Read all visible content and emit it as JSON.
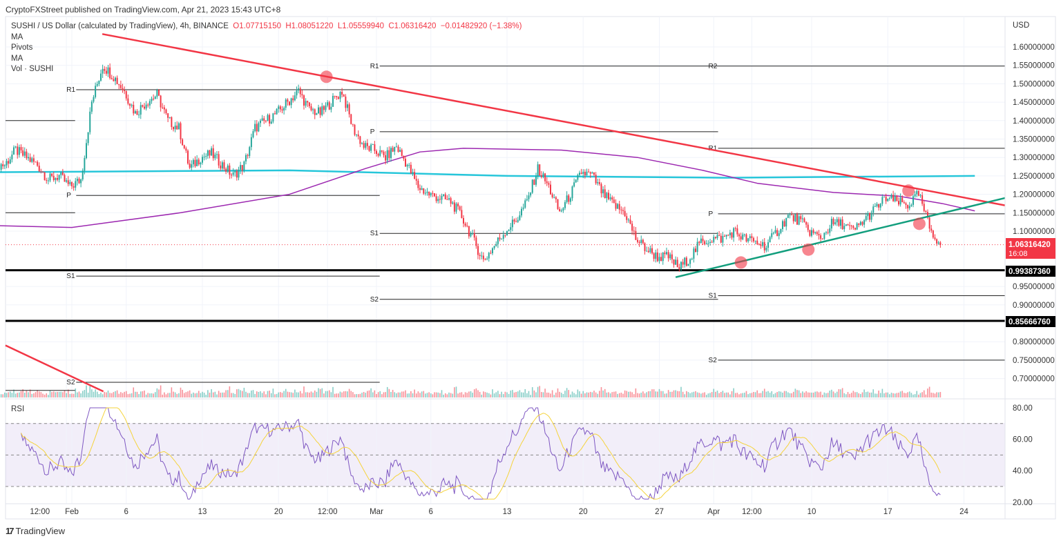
{
  "publish_line": "CryptoFXStreet published on TradingView.com, Apr 21, 2023 15:43 UTC+8",
  "legend": {
    "symbol": "SUSHI / US Dollar (calculated by TradingView), 4h, BINANCE",
    "open": "O1.07715150",
    "high": "H1.08051220",
    "low": "L1.05559940",
    "close": "C1.06316420",
    "change": "−0.01482920 (−1.38%)",
    "indicators": [
      "MA",
      "Pivots",
      "MA",
      "Vol · SUSHI"
    ]
  },
  "currency": "USD",
  "last_price": {
    "value": "1.06316420",
    "countdown": "16:08",
    "color": "#f23645"
  },
  "level_labels": [
    {
      "price": 0.9938736,
      "text": "0.99387360"
    },
    {
      "price": 0.8566676,
      "text": "0.85666760"
    }
  ],
  "rsi_label": "RSI",
  "brand": "TradingView",
  "colors": {
    "up": "#26a69a",
    "down": "#f23645",
    "trend_red": "#f23645",
    "trend_green": "#129e7d",
    "ma_cyan": "#26c6da",
    "ma_purple": "#9c27b0",
    "rsi": "#7e57c2",
    "rsi_ma": "#f5d33b"
  },
  "chart_data": {
    "type": "candlestick",
    "title": "SUSHI / US Dollar, 4h, BINANCE",
    "ylabel": "USD",
    "ylim": [
      0.65,
      1.66
    ],
    "y_ticks": [
      "1.60000000",
      "1.55000000",
      "1.50000000",
      "1.45000000",
      "1.40000000",
      "1.35000000",
      "1.30000000",
      "1.25000000",
      "1.20000000",
      "1.15000000",
      "1.10000000",
      "0.95000000",
      "0.90000000",
      "0.80000000",
      "0.75000000",
      "0.70000000"
    ],
    "x_ticks": [
      {
        "day": -0.5,
        "label": "12:00"
      },
      {
        "day": 0,
        "label": "Feb"
      },
      {
        "day": 5,
        "label": "6"
      },
      {
        "day": 12,
        "label": "13"
      },
      {
        "day": 19,
        "label": "20"
      },
      {
        "day": 23.5,
        "label": "12:00"
      },
      {
        "day": 28,
        "label": "Mar"
      },
      {
        "day": 33,
        "label": "6"
      },
      {
        "day": 40,
        "label": "13"
      },
      {
        "day": 47,
        "label": "20"
      },
      {
        "day": 54,
        "label": "27"
      },
      {
        "day": 59,
        "label": "Apr"
      },
      {
        "day": 62.5,
        "label": "12:00"
      },
      {
        "day": 68,
        "label": "10"
      },
      {
        "day": 75,
        "label": "17"
      },
      {
        "day": 82,
        "label": "24"
      }
    ],
    "start_date": "Jan 25",
    "daily_close": [
      1.28,
      1.32,
      1.3,
      1.28,
      1.24,
      1.25,
      1.22,
      1.24,
      1.45,
      1.55,
      1.52,
      1.48,
      1.42,
      1.45,
      1.47,
      1.4,
      1.38,
      1.27,
      1.3,
      1.31,
      1.28,
      1.25,
      1.28,
      1.38,
      1.4,
      1.42,
      1.45,
      1.48,
      1.43,
      1.42,
      1.45,
      1.48,
      1.38,
      1.33,
      1.32,
      1.3,
      1.33,
      1.28,
      1.22,
      1.2,
      1.19,
      1.18,
      1.14,
      1.08,
      1.02,
      1.06,
      1.1,
      1.13,
      1.18,
      1.27,
      1.22,
      1.15,
      1.2,
      1.26,
      1.25,
      1.2,
      1.17,
      1.15,
      1.08,
      1.05,
      1.03,
      1.03,
      1.0,
      1.03,
      1.07,
      1.08,
      1.08,
      1.1,
      1.08,
      1.07,
      1.06,
      1.1,
      1.14,
      1.13,
      1.1,
      1.08,
      1.12,
      1.12,
      1.1,
      1.13,
      1.16,
      1.19,
      1.18,
      1.17,
      1.2,
      1.11,
      1.063
    ],
    "moving_averages": [
      {
        "name": "MA (cyan)",
        "points": [
          [
            -7,
            1.26
          ],
          [
            20,
            1.265
          ],
          [
            40,
            1.25
          ],
          [
            60,
            1.245
          ],
          [
            83,
            1.25
          ]
        ]
      },
      {
        "name": "MA (purple)",
        "points": [
          [
            -7,
            1.115
          ],
          [
            0,
            1.11
          ],
          [
            10,
            1.15
          ],
          [
            20,
            1.2
          ],
          [
            27,
            1.27
          ],
          [
            32,
            1.315
          ],
          [
            36,
            1.325
          ],
          [
            45,
            1.32
          ],
          [
            52,
            1.3
          ],
          [
            58,
            1.265
          ],
          [
            63,
            1.23
          ],
          [
            70,
            1.205
          ],
          [
            76,
            1.195
          ],
          [
            80,
            1.175
          ],
          [
            83,
            1.155
          ]
        ]
      }
    ],
    "trendlines": [
      {
        "name": "descending resistance",
        "color": "red",
        "from": [
          2.8,
          1.635
        ],
        "to": [
          90.6,
          1.17
        ]
      },
      {
        "name": "ascending support",
        "color": "green",
        "from": [
          55.5,
          0.975
        ],
        "to": [
          90.6,
          1.19
        ]
      },
      {
        "name": "old descending line",
        "color": "red",
        "from": [
          -6.1,
          0.79
        ],
        "to": [
          2.9,
          0.665
        ]
      }
    ],
    "horizontal_levels": [
      0.9938736,
      0.8566676
    ],
    "pivots": [
      {
        "label": "",
        "price": 1.4,
        "from": -6.1,
        "to": 0.3
      },
      {
        "label": "",
        "price": 1.15,
        "from": -6.1,
        "to": 0.3
      },
      {
        "label": "",
        "price": 0.668,
        "from": -6.1,
        "to": 0.3
      },
      {
        "label": "R1",
        "price": 1.484,
        "from": 0.4,
        "to": 28.3
      },
      {
        "label": "P",
        "price": 1.197,
        "from": 0.4,
        "to": 28.3
      },
      {
        "label": "S1",
        "price": 0.978,
        "from": 0.4,
        "to": 28.3
      },
      {
        "label": "S2",
        "price": 0.69,
        "from": 0.4,
        "to": 28.3
      },
      {
        "label": "R1",
        "price": 1.548,
        "from": 28.3,
        "to": 59.4
      },
      {
        "label": "P",
        "price": 1.37,
        "from": 28.3,
        "to": 59.4
      },
      {
        "label": "S1",
        "price": 1.094,
        "from": 28.3,
        "to": 59.4
      },
      {
        "label": "S2",
        "price": 0.915,
        "from": 28.3,
        "to": 59.4
      },
      {
        "label": "R2",
        "price": 1.548,
        "from": 59.4,
        "to": 85.8
      },
      {
        "label": "R1",
        "price": 1.325,
        "from": 59.4,
        "to": 85.8
      },
      {
        "label": "P",
        "price": 1.147,
        "from": 59.4,
        "to": 85.8
      },
      {
        "label": "S1",
        "price": 0.925,
        "from": 59.4,
        "to": 85.8
      },
      {
        "label": "S2",
        "price": 0.75,
        "from": 59.4,
        "to": 85.8
      }
    ],
    "markers": [
      [
        23.4,
        1.519
      ],
      [
        61.5,
        1.015
      ],
      [
        67.7,
        1.05
      ],
      [
        76.9,
        1.21
      ],
      [
        77.9,
        1.12
      ]
    ],
    "rsi": {
      "ylim": [
        20,
        80
      ],
      "ticks": [
        "80.00",
        "60.00",
        "40.00",
        "20.00"
      ],
      "bands": [
        30,
        50,
        70
      ]
    }
  }
}
